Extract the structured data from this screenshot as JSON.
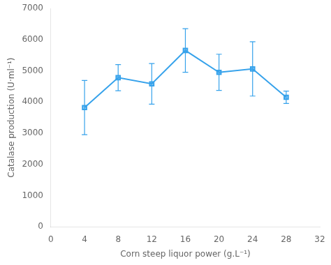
{
  "chart_data": {
    "type": "line",
    "xlabel": "Corn steep liquor power (g.L⁻¹)",
    "ylabel": "Catalase production (U·ml⁻¹)",
    "x": [
      4,
      8,
      12,
      16,
      20,
      24,
      28
    ],
    "values": [
      3820,
      4780,
      4580,
      5650,
      4950,
      5060,
      4150
    ],
    "yerr": [
      870,
      420,
      650,
      700,
      580,
      870,
      200
    ],
    "xlim": [
      0,
      32
    ],
    "ylim": [
      0,
      7000
    ],
    "xticks": [
      0,
      4,
      8,
      12,
      16,
      20,
      24,
      28,
      32
    ],
    "yticks": [
      0,
      1000,
      2000,
      3000,
      4000,
      5000,
      6000,
      7000
    ],
    "marker": "square",
    "grid": false
  }
}
